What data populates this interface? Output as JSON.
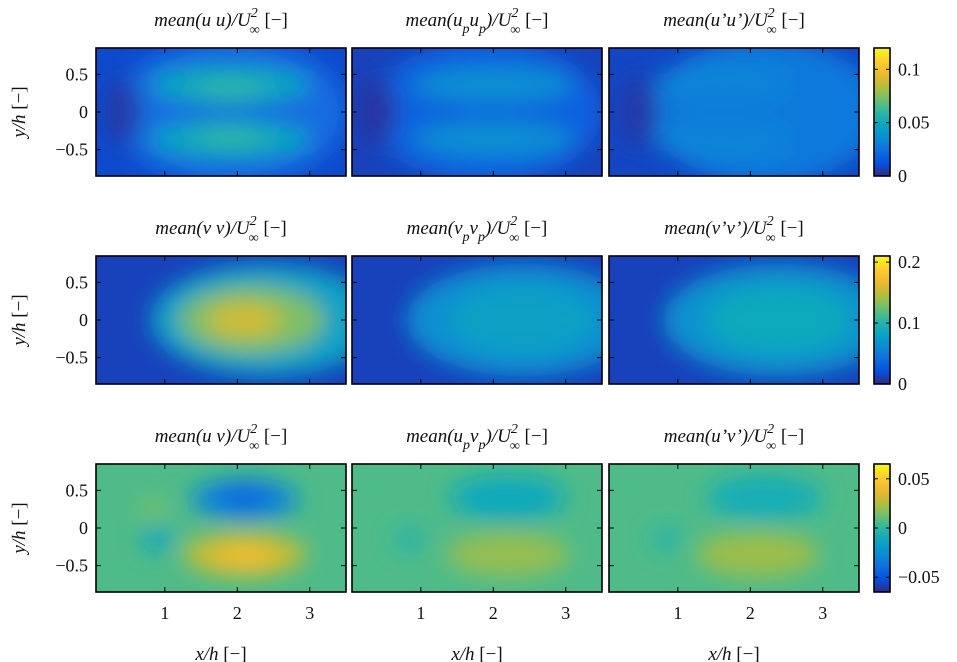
{
  "chart_data": {
    "type": "heatmap",
    "grid": false,
    "colormap": "parula",
    "x": {
      "label": "x/h",
      "unit": "[−]",
      "lim": [
        0.05,
        3.5
      ],
      "ticks": [
        1,
        2,
        3
      ],
      "tick_labels": [
        "1",
        "2",
        "3"
      ]
    },
    "y": {
      "label": "y/h",
      "unit": "[−]",
      "lim": [
        -0.85,
        0.85
      ],
      "ticks": [
        0.5,
        0,
        -0.5
      ],
      "tick_labels": [
        "0.5",
        "0",
        "−0.5"
      ]
    },
    "rows": [
      {
        "name": "uu",
        "colorbar": {
          "lim": [
            0,
            0.12
          ],
          "ticks": [
            0,
            0.05,
            0.1
          ],
          "tick_labels": [
            "0",
            "0.05",
            "0.1"
          ]
        },
        "panels": [
          {
            "name": "uu-mean",
            "title": {
              "main": "mean(u u)/U",
              "sup": "2",
              "sub": "∞",
              "unit": "[−]"
            }
          },
          {
            "name": "uu-particle",
            "title": {
              "main": "mean(u",
              "sub1": "p",
              "mid": "u",
              "sub2": "p",
              "tail": ")/U",
              "sup": "2",
              "sub": "∞",
              "unit": "[−]"
            }
          },
          {
            "name": "uu-fluct",
            "title": {
              "main": "mean(u’u’)/U",
              "sup": "2",
              "sub": "∞",
              "unit": "[−]"
            }
          }
        ]
      },
      {
        "name": "vv",
        "colorbar": {
          "lim": [
            0,
            0.21
          ],
          "ticks": [
            0,
            0.1,
            0.2
          ],
          "tick_labels": [
            "0",
            "0.1",
            "0.2"
          ]
        },
        "panels": [
          {
            "name": "vv-mean",
            "title": {
              "main": "mean(v v)/U",
              "sup": "2",
              "sub": "∞",
              "unit": "[−]"
            }
          },
          {
            "name": "vv-particle",
            "title": {
              "main": "mean(v",
              "sub1": "p",
              "mid": "v",
              "sub2": "p",
              "tail": ")/U",
              "sup": "2",
              "sub": "∞",
              "unit": "[−]"
            }
          },
          {
            "name": "vv-fluct",
            "title": {
              "main": "mean(v’v’)/U",
              "sup": "2",
              "sub": "∞",
              "unit": "[−]"
            }
          }
        ]
      },
      {
        "name": "uv",
        "colorbar": {
          "lim": [
            -0.065,
            0.065
          ],
          "ticks": [
            -0.05,
            0,
            0.05
          ],
          "tick_labels": [
            "−0.05",
            "0",
            "0.05"
          ]
        },
        "panels": [
          {
            "name": "uv-mean",
            "title": {
              "main": "mean(u v)/U",
              "sup": "2",
              "sub": "∞",
              "unit": "[−]"
            }
          },
          {
            "name": "uv-particle",
            "title": {
              "main": "mean(u",
              "sub1": "p",
              "mid": "v",
              "sub2": "p",
              "tail": ")/U",
              "sup": "2",
              "sub": "∞",
              "unit": "[−]"
            }
          },
          {
            "name": "uv-fluct",
            "title": {
              "main": "mean(u’v’)/U",
              "sup": "2",
              "sub": "∞",
              "unit": "[−]"
            }
          }
        ]
      }
    ]
  }
}
